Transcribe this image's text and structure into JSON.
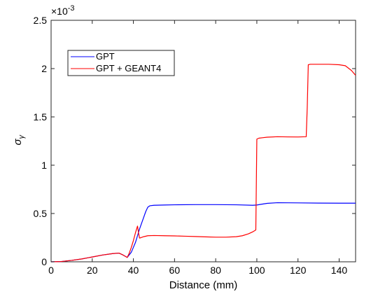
{
  "chart_data": {
    "type": "line",
    "title": "",
    "xlabel": "Distance (mm)",
    "ylabel": "σ_γ",
    "ylabel_main": "σ",
    "ylabel_sub": "γ",
    "xlim": [
      0,
      148
    ],
    "ylim": [
      0,
      2.5
    ],
    "y_multiplier_base": "×10",
    "y_multiplier_exp": "-3",
    "xticks": [
      0,
      20,
      40,
      60,
      80,
      100,
      120,
      140
    ],
    "xtick_labels": [
      "0",
      "20",
      "40",
      "60",
      "80",
      "100",
      "120",
      "140"
    ],
    "yticks": [
      0,
      0.5,
      1,
      1.5,
      2,
      2.5
    ],
    "ytick_labels": [
      "0",
      "0.5",
      "1",
      "1.5",
      "2",
      "2.5"
    ],
    "grid": false,
    "legend_position": "top-left",
    "series": [
      {
        "name": "GPT",
        "color": "#0000ff",
        "x": [
          0,
          5,
          10,
          15,
          20,
          25,
          30,
          33,
          35,
          37,
          39,
          40,
          41,
          42,
          43,
          44,
          45,
          46,
          47,
          48,
          50,
          55,
          60,
          70,
          80,
          90,
          98,
          100,
          102,
          105,
          110,
          120,
          130,
          140,
          148
        ],
        "y": [
          0,
          0.003,
          0.015,
          0.03,
          0.05,
          0.07,
          0.085,
          0.09,
          0.07,
          0.045,
          0.1,
          0.15,
          0.2,
          0.27,
          0.34,
          0.4,
          0.46,
          0.52,
          0.565,
          0.58,
          0.585,
          0.588,
          0.59,
          0.592,
          0.592,
          0.59,
          0.585,
          0.588,
          0.595,
          0.605,
          0.612,
          0.61,
          0.608,
          0.607,
          0.607
        ]
      },
      {
        "name": "GPT + GEANT4",
        "color": "#ff0000",
        "x": [
          0,
          5,
          10,
          15,
          20,
          25,
          30,
          33,
          35,
          37,
          38,
          39,
          40,
          41,
          42,
          42.5,
          43,
          45,
          47,
          50,
          55,
          60,
          65,
          70,
          75,
          80,
          85,
          90,
          93,
          96,
          98,
          99.5,
          100,
          101,
          103,
          105,
          110,
          115,
          120,
          124,
          124.5,
          125,
          126,
          130,
          135,
          140,
          143,
          146,
          148
        ],
        "y": [
          0,
          0.003,
          0.015,
          0.03,
          0.05,
          0.07,
          0.085,
          0.09,
          0.07,
          0.045,
          0.09,
          0.15,
          0.22,
          0.3,
          0.37,
          0.3,
          0.245,
          0.26,
          0.27,
          0.272,
          0.27,
          0.268,
          0.265,
          0.262,
          0.258,
          0.255,
          0.255,
          0.26,
          0.27,
          0.29,
          0.31,
          0.33,
          1.27,
          1.28,
          1.285,
          1.29,
          1.295,
          1.293,
          1.292,
          1.295,
          1.6,
          2.04,
          2.045,
          2.045,
          2.045,
          2.04,
          2.03,
          1.98,
          1.93
        ]
      }
    ]
  }
}
